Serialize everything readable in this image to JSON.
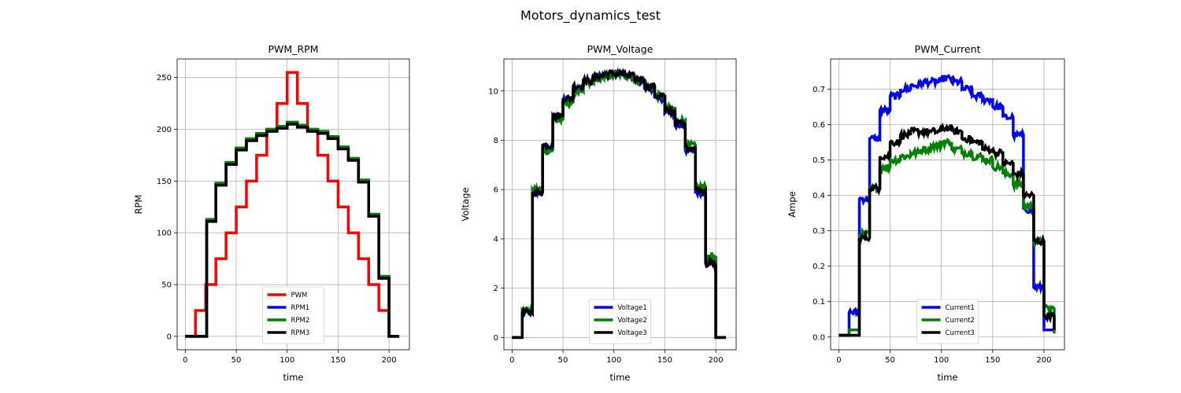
{
  "figure": {
    "suptitle": "Motors_dynamics_test"
  },
  "chart_data": [
    {
      "type": "line",
      "title": "PWM_RPM",
      "xlabel": "time",
      "ylabel": "RPM",
      "xlim": [
        -8,
        220
      ],
      "ylim": [
        -13,
        268
      ],
      "xticks": [
        0,
        50,
        100,
        150,
        200
      ],
      "yticks": [
        0,
        50,
        100,
        150,
        200,
        250
      ],
      "grid": true,
      "legend_position": "lower-center",
      "series": [
        {
          "name": "PWM",
          "color": "#ff0000",
          "kind": "step",
          "t": [
            0,
            10,
            20,
            30,
            40,
            50,
            60,
            70,
            80,
            90,
            100,
            110,
            120,
            130,
            140,
            150,
            160,
            170,
            180,
            190,
            200,
            210
          ],
          "v": [
            0,
            25,
            50,
            75,
            100,
            125,
            150,
            175,
            200,
            225,
            255,
            225,
            200,
            175,
            150,
            125,
            100,
            75,
            50,
            25,
            0,
            0
          ]
        },
        {
          "name": "RPM1",
          "color": "#0000ff",
          "kind": "step",
          "t": [
            0,
            20,
            21,
            30,
            40,
            50,
            60,
            70,
            80,
            90,
            100,
            110,
            120,
            130,
            140,
            150,
            160,
            170,
            180,
            190,
            200,
            210
          ],
          "v": [
            0,
            0,
            112,
            147,
            167,
            181,
            190,
            195,
            199,
            202,
            206,
            203,
            199,
            197,
            192,
            182,
            171,
            150,
            117,
            57,
            0,
            0
          ]
        },
        {
          "name": "RPM2",
          "color": "#008000",
          "kind": "step",
          "t": [
            0,
            20,
            21,
            30,
            40,
            50,
            60,
            70,
            80,
            90,
            100,
            110,
            120,
            130,
            140,
            150,
            160,
            170,
            180,
            190,
            200,
            210
          ],
          "v": [
            0,
            0,
            113,
            148,
            168,
            182,
            191,
            196,
            200,
            203,
            207,
            204,
            200,
            198,
            193,
            183,
            172,
            151,
            118,
            58,
            0,
            0
          ]
        },
        {
          "name": "RPM3",
          "color": "#000000",
          "kind": "step",
          "t": [
            0,
            20,
            21,
            30,
            40,
            50,
            60,
            70,
            80,
            90,
            100,
            110,
            120,
            130,
            140,
            150,
            160,
            170,
            180,
            190,
            200,
            210
          ],
          "v": [
            0,
            0,
            111,
            146,
            166,
            180,
            189,
            194,
            198,
            201,
            205,
            202,
            198,
            196,
            191,
            181,
            170,
            149,
            116,
            56,
            0,
            0
          ]
        }
      ]
    },
    {
      "type": "line",
      "title": "PWM_Voltage",
      "xlabel": "time",
      "ylabel": "Voltage",
      "xlim": [
        -8,
        220
      ],
      "ylim": [
        -0.5,
        11.3
      ],
      "xticks": [
        0,
        50,
        100,
        150,
        200
      ],
      "yticks": [
        0,
        2,
        4,
        6,
        8,
        10
      ],
      "grid": true,
      "legend_position": "lower-center",
      "series": [
        {
          "name": "Voltage1",
          "color": "#0000ff",
          "kind": "noisy-step",
          "t": [
            0,
            10,
            20,
            30,
            40,
            50,
            60,
            70,
            80,
            90,
            100,
            110,
            120,
            130,
            140,
            150,
            160,
            170,
            180,
            190,
            200,
            210
          ],
          "v": [
            0,
            1.0,
            5.9,
            7.7,
            8.9,
            9.6,
            10.1,
            10.4,
            10.6,
            10.7,
            10.7,
            10.6,
            10.4,
            10.1,
            9.7,
            9.1,
            8.6,
            7.6,
            5.9,
            3.1,
            0,
            0
          ]
        },
        {
          "name": "Voltage2",
          "color": "#008000",
          "kind": "noisy-step",
          "t": [
            0,
            10,
            20,
            30,
            40,
            50,
            60,
            70,
            80,
            90,
            100,
            110,
            120,
            130,
            140,
            150,
            160,
            170,
            180,
            190,
            200,
            210
          ],
          "v": [
            0,
            1.1,
            6.0,
            7.6,
            8.8,
            9.5,
            10.0,
            10.3,
            10.5,
            10.6,
            10.7,
            10.6,
            10.4,
            10.2,
            9.8,
            9.3,
            8.8,
            7.8,
            6.1,
            3.3,
            0,
            0
          ]
        },
        {
          "name": "Voltage3",
          "color": "#000000",
          "kind": "noisy-step",
          "t": [
            0,
            10,
            20,
            30,
            40,
            50,
            60,
            70,
            80,
            90,
            100,
            110,
            120,
            130,
            140,
            150,
            160,
            170,
            180,
            190,
            200,
            210
          ],
          "v": [
            0,
            1.0,
            5.9,
            7.8,
            9.0,
            9.7,
            10.2,
            10.4,
            10.6,
            10.7,
            10.7,
            10.6,
            10.5,
            10.2,
            9.8,
            9.2,
            8.7,
            7.7,
            6.0,
            3.0,
            0,
            0
          ]
        }
      ]
    },
    {
      "type": "line",
      "title": "PWM_Current",
      "xlabel": "time",
      "ylabel": "Ampe",
      "xlim": [
        -8,
        220
      ],
      "ylim": [
        -0.036,
        0.785
      ],
      "xticks": [
        0,
        50,
        100,
        150,
        200
      ],
      "yticks": [
        0.0,
        0.1,
        0.2,
        0.3,
        0.4,
        0.5,
        0.6,
        0.7
      ],
      "grid": true,
      "legend_position": "lower-center",
      "series": [
        {
          "name": "Current1",
          "color": "#0000ff",
          "kind": "noisy-step",
          "t": [
            0,
            10,
            20,
            30,
            40,
            50,
            60,
            70,
            80,
            90,
            100,
            110,
            120,
            130,
            140,
            150,
            160,
            170,
            180,
            190,
            200,
            210
          ],
          "v": [
            0.005,
            0.07,
            0.39,
            0.56,
            0.64,
            0.68,
            0.7,
            0.71,
            0.72,
            0.72,
            0.73,
            0.72,
            0.7,
            0.68,
            0.67,
            0.65,
            0.62,
            0.57,
            0.36,
            0.14,
            0.02,
            0.02
          ]
        },
        {
          "name": "Current2",
          "color": "#008000",
          "kind": "noisy-step",
          "t": [
            0,
            10,
            20,
            30,
            40,
            50,
            60,
            70,
            80,
            90,
            100,
            110,
            120,
            130,
            140,
            150,
            160,
            170,
            180,
            190,
            200,
            210
          ],
          "v": [
            0.005,
            0.02,
            0.29,
            0.42,
            0.48,
            0.5,
            0.51,
            0.52,
            0.53,
            0.54,
            0.55,
            0.53,
            0.52,
            0.51,
            0.5,
            0.48,
            0.46,
            0.43,
            0.37,
            0.27,
            0.08,
            0.01
          ]
        },
        {
          "name": "Current3",
          "color": "#000000",
          "kind": "noisy-step",
          "t": [
            0,
            10,
            20,
            30,
            40,
            50,
            60,
            70,
            80,
            90,
            100,
            110,
            120,
            130,
            140,
            150,
            160,
            170,
            180,
            190,
            200,
            210
          ],
          "v": [
            0.005,
            0.005,
            0.28,
            0.42,
            0.51,
            0.55,
            0.57,
            0.58,
            0.58,
            0.58,
            0.59,
            0.58,
            0.56,
            0.55,
            0.53,
            0.52,
            0.49,
            0.46,
            0.4,
            0.27,
            0.06,
            0.02
          ]
        }
      ]
    }
  ]
}
